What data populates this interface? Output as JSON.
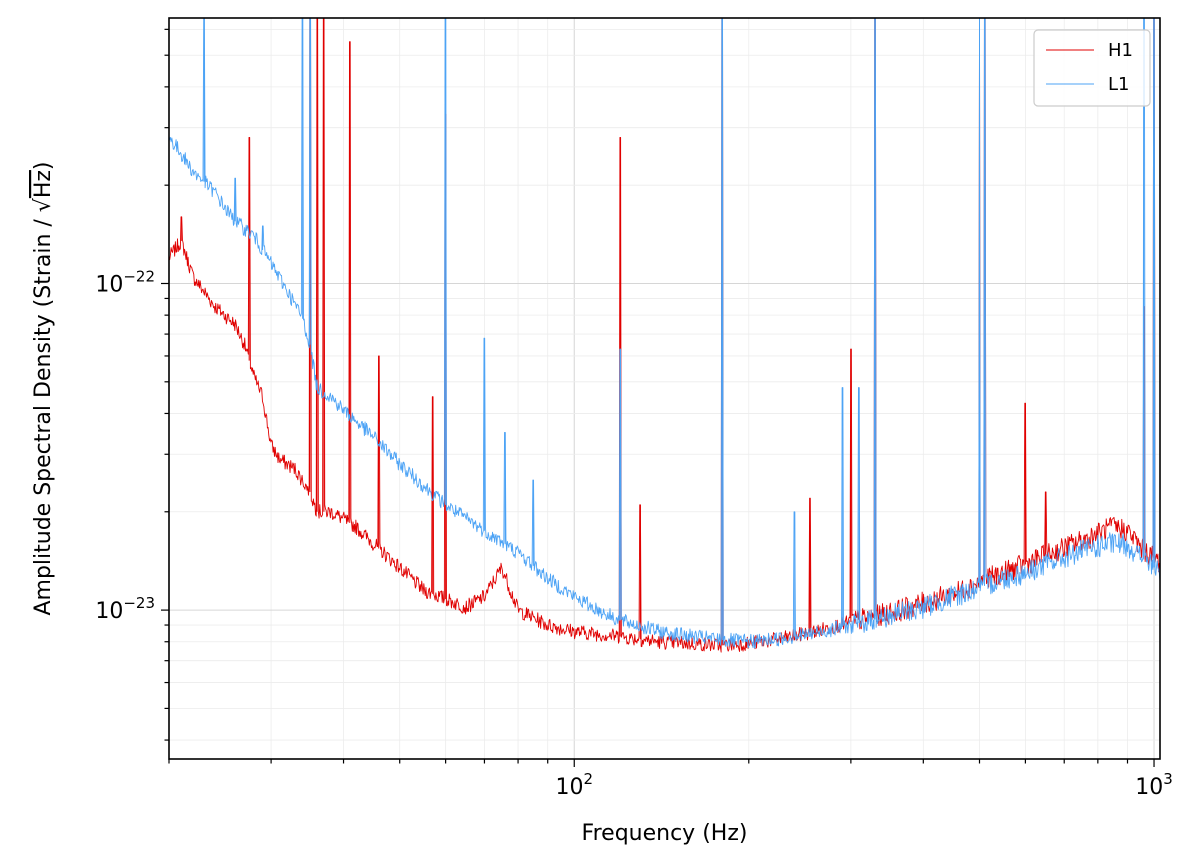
{
  "chart_data": {
    "type": "line",
    "xscale": "log",
    "yscale": "log",
    "xlim": [
      20,
      1024
    ],
    "ylim": [
      3.5e-24,
      6.5e-22
    ],
    "grid": true,
    "xlabel": "Frequency (Hz)",
    "ylabel_prefix": "Amplitude Spectral Density (Strain / ",
    "ylabel_root": "√",
    "ylabel_radicand": "Hz",
    "ylabel_suffix": ")",
    "x_ticks": [
      {
        "value": 100,
        "base": "10",
        "exp": "2"
      },
      {
        "value": 1000,
        "base": "10",
        "exp": "3"
      }
    ],
    "y_ticks": [
      {
        "value": 1e-23,
        "base": "10",
        "exp": "−23"
      },
      {
        "value": 1e-22,
        "base": "10",
        "exp": "−22"
      }
    ],
    "legend_position": "top-right",
    "series": [
      {
        "name": "H1",
        "color": "#e00000",
        "points": [
          [
            20,
            1.2e-22
          ],
          [
            21,
            1.35e-22
          ],
          [
            22,
            1.05e-22
          ],
          [
            24,
            8.5e-23
          ],
          [
            26,
            7.5e-23
          ],
          [
            27,
            6.5e-23
          ],
          [
            28,
            5.2e-23
          ],
          [
            29,
            4.5e-23
          ],
          [
            30,
            3.2e-23
          ],
          [
            31,
            2.9e-23
          ],
          [
            33,
            2.7e-23
          ],
          [
            35,
            2.3e-23
          ],
          [
            36,
            2e-23
          ],
          [
            38,
            2e-23
          ],
          [
            40,
            1.9e-23
          ],
          [
            42,
            1.8e-23
          ],
          [
            45,
            1.6e-23
          ],
          [
            50,
            1.35e-23
          ],
          [
            55,
            1.15e-23
          ],
          [
            60,
            1.08e-23
          ],
          [
            65,
            1.02e-23
          ],
          [
            70,
            1.1e-23
          ],
          [
            75,
            1.35e-23
          ],
          [
            80,
            1e-23
          ],
          [
            90,
            9e-24
          ],
          [
            100,
            8.6e-24
          ],
          [
            120,
            8.3e-24
          ],
          [
            140,
            8e-24
          ],
          [
            160,
            7.9e-24
          ],
          [
            180,
            7.8e-24
          ],
          [
            200,
            7.9e-24
          ],
          [
            230,
            8.2e-24
          ],
          [
            260,
            8.6e-24
          ],
          [
            300,
            9.2e-24
          ],
          [
            350,
            9.8e-24
          ],
          [
            400,
            1.05e-23
          ],
          [
            450,
            1.12e-23
          ],
          [
            500,
            1.22e-23
          ],
          [
            550,
            1.3e-23
          ],
          [
            600,
            1.38e-23
          ],
          [
            650,
            1.47e-23
          ],
          [
            700,
            1.55e-23
          ],
          [
            780,
            1.68e-23
          ],
          [
            850,
            1.8e-23
          ],
          [
            900,
            1.75e-23
          ],
          [
            950,
            1.55e-23
          ],
          [
            1000,
            1.45e-23
          ],
          [
            1024,
            1.4e-23
          ]
        ],
        "spikes": [
          [
            21,
            1.6e-22
          ],
          [
            27.5,
            2.8e-22
          ],
          [
            35,
            6.5e-22
          ],
          [
            36,
            6.5e-22
          ],
          [
            37,
            6.5e-22
          ],
          [
            41,
            5.5e-22
          ],
          [
            46,
            6e-23
          ],
          [
            57,
            4.5e-23
          ],
          [
            60,
            3.3e-22
          ],
          [
            120,
            2.8e-22
          ],
          [
            130,
            2.1e-23
          ],
          [
            180,
            6.5e-22
          ],
          [
            255,
            2.2e-23
          ],
          [
            300,
            6.3e-23
          ],
          [
            330,
            6.5e-22
          ],
          [
            500,
            6.5e-22
          ],
          [
            510,
            6.5e-22
          ],
          [
            600,
            4.3e-23
          ],
          [
            650,
            2.3e-23
          ],
          [
            960,
            8.5e-23
          ],
          [
            1000,
            6.5e-22
          ]
        ]
      },
      {
        "name": "L1",
        "color": "#4da3f5",
        "points": [
          [
            20,
            2.8e-22
          ],
          [
            21,
            2.5e-22
          ],
          [
            22,
            2.2e-22
          ],
          [
            23,
            2.05e-22
          ],
          [
            24,
            1.9e-22
          ],
          [
            25,
            1.7e-22
          ],
          [
            26,
            1.55e-22
          ],
          [
            28,
            1.4e-22
          ],
          [
            30,
            1.15e-22
          ],
          [
            32,
            9.5e-23
          ],
          [
            34,
            7.8e-23
          ],
          [
            35,
            6.5e-23
          ],
          [
            36,
            4.8e-23
          ],
          [
            38,
            4.5e-23
          ],
          [
            40,
            4.1e-23
          ],
          [
            45,
            3.4e-23
          ],
          [
            50,
            2.8e-23
          ],
          [
            55,
            2.4e-23
          ],
          [
            60,
            2.1e-23
          ],
          [
            70,
            1.75e-23
          ],
          [
            80,
            1.5e-23
          ],
          [
            90,
            1.25e-23
          ],
          [
            100,
            1.1e-23
          ],
          [
            110,
            1e-23
          ],
          [
            120,
            9.3e-24
          ],
          [
            140,
            8.6e-24
          ],
          [
            160,
            8.3e-24
          ],
          [
            180,
            8.1e-24
          ],
          [
            200,
            8e-24
          ],
          [
            230,
            8.2e-24
          ],
          [
            260,
            8.5e-24
          ],
          [
            300,
            9e-24
          ],
          [
            350,
            9.6e-24
          ],
          [
            400,
            1.02e-23
          ],
          [
            450,
            1.1e-23
          ],
          [
            500,
            1.17e-23
          ],
          [
            550,
            1.25e-23
          ],
          [
            600,
            1.3e-23
          ],
          [
            650,
            1.38e-23
          ],
          [
            700,
            1.45e-23
          ],
          [
            780,
            1.55e-23
          ],
          [
            850,
            1.6e-23
          ],
          [
            900,
            1.58e-23
          ],
          [
            950,
            1.45e-23
          ],
          [
            1000,
            1.35e-23
          ],
          [
            1024,
            1.3e-23
          ]
        ],
        "spikes": [
          [
            23,
            6.5e-22
          ],
          [
            26,
            2.1e-22
          ],
          [
            29,
            1.5e-22
          ],
          [
            34,
            6.5e-22
          ],
          [
            35,
            6.5e-22
          ],
          [
            60,
            6.5e-22
          ],
          [
            70,
            6.8e-23
          ],
          [
            76,
            3.5e-23
          ],
          [
            85,
            2.5e-23
          ],
          [
            120,
            6.3e-23
          ],
          [
            180,
            6.5e-22
          ],
          [
            240,
            2e-23
          ],
          [
            290,
            4.8e-23
          ],
          [
            310,
            4.8e-23
          ],
          [
            330,
            6.5e-22
          ],
          [
            500,
            6.5e-22
          ],
          [
            510,
            6.5e-22
          ],
          [
            960,
            6.5e-22
          ],
          [
            1000,
            6.5e-22
          ]
        ]
      }
    ]
  }
}
